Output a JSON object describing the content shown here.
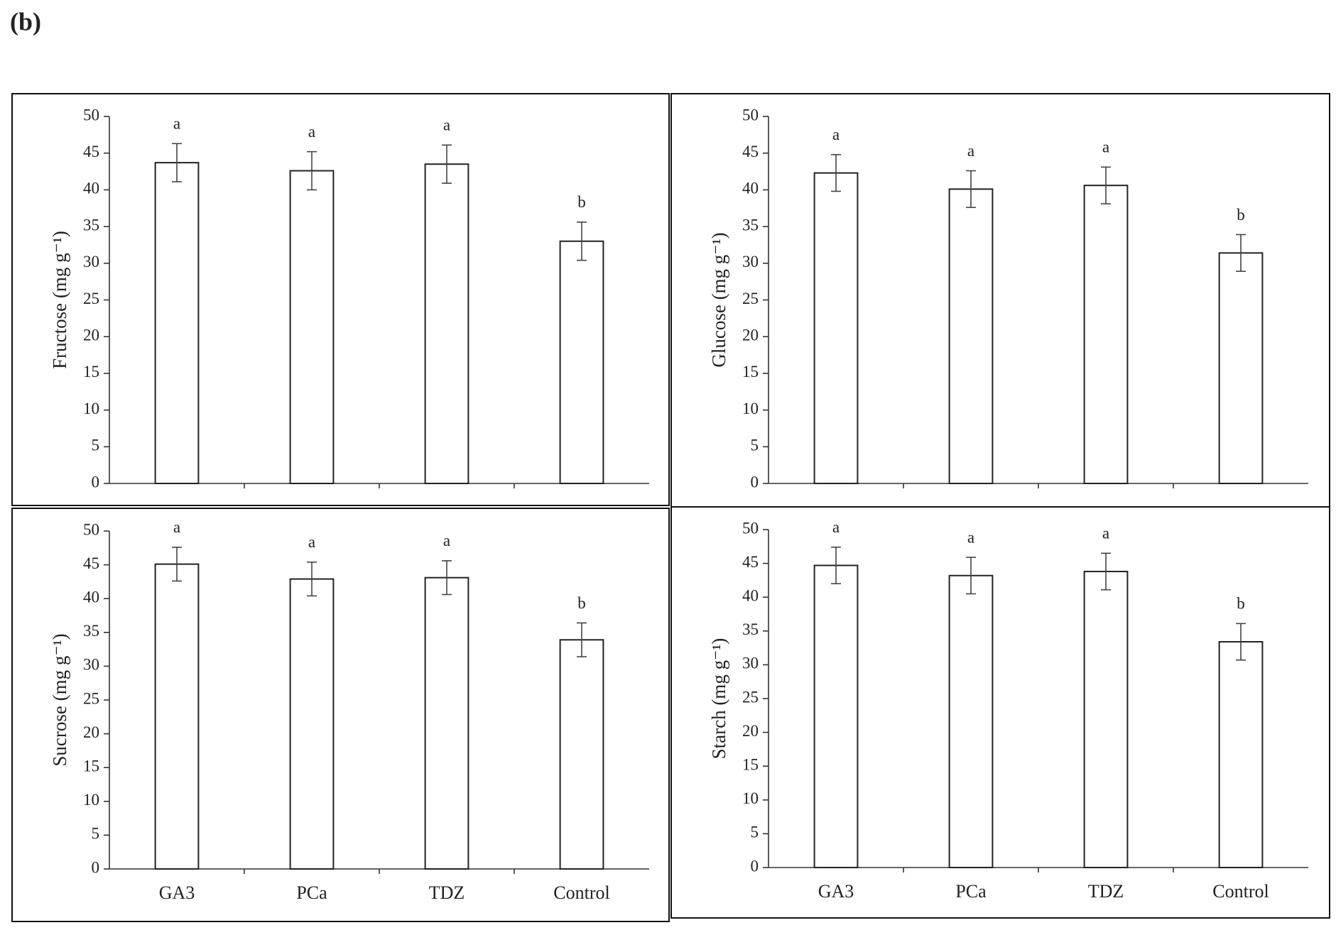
{
  "panel_label": "(b)",
  "chart_data": [
    {
      "type": "bar",
      "ylabel": "Fructose (mg g⁻¹)",
      "categories": [
        null,
        null,
        null,
        null
      ],
      "values": [
        43.7,
        42.6,
        43.5,
        33.0
      ],
      "errors": [
        2.6,
        2.6,
        2.6,
        2.6
      ],
      "annotations": [
        "a",
        "a",
        "a",
        "b"
      ],
      "color": "#ffffff",
      "ylim": [
        0,
        50
      ],
      "yticks": [
        0,
        5,
        10,
        15,
        20,
        25,
        30,
        35,
        40,
        45,
        50
      ]
    },
    {
      "type": "bar",
      "ylabel": "Glucose (mg g⁻¹)",
      "categories": [
        null,
        null,
        null,
        null
      ],
      "values": [
        42.3,
        40.1,
        40.6,
        31.4
      ],
      "errors": [
        2.5,
        2.5,
        2.5,
        2.5
      ],
      "annotations": [
        "a",
        "a",
        "a",
        "b"
      ],
      "color": "#ffffff",
      "ylim": [
        0,
        50
      ],
      "yticks": [
        0,
        5,
        10,
        15,
        20,
        25,
        30,
        35,
        40,
        45,
        50
      ]
    },
    {
      "type": "bar",
      "ylabel": "Sucrose (mg g⁻¹)",
      "categories": [
        "GA3",
        "PCa",
        "TDZ",
        "Control"
      ],
      "values": [
        45.1,
        42.9,
        43.1,
        33.9
      ],
      "errors": [
        2.5,
        2.5,
        2.5,
        2.5
      ],
      "annotations": [
        "a",
        "a",
        "a",
        "b"
      ],
      "color": "#ffffff",
      "ylim": [
        0,
        50
      ],
      "yticks": [
        0,
        5,
        10,
        15,
        20,
        25,
        30,
        35,
        40,
        45,
        50
      ]
    },
    {
      "type": "bar",
      "ylabel": "Starch (mg g⁻¹)",
      "categories": [
        "GA3",
        "PCa",
        "TDZ",
        "Control"
      ],
      "values": [
        44.7,
        43.2,
        43.8,
        33.4
      ],
      "errors": [
        2.7,
        2.7,
        2.7,
        2.7
      ],
      "annotations": [
        "a",
        "a",
        "a",
        "b"
      ],
      "color": "#ffffff",
      "ylim": [
        0,
        50
      ],
      "yticks": [
        0,
        5,
        10,
        15,
        20,
        25,
        30,
        35,
        40,
        45,
        50
      ]
    }
  ]
}
